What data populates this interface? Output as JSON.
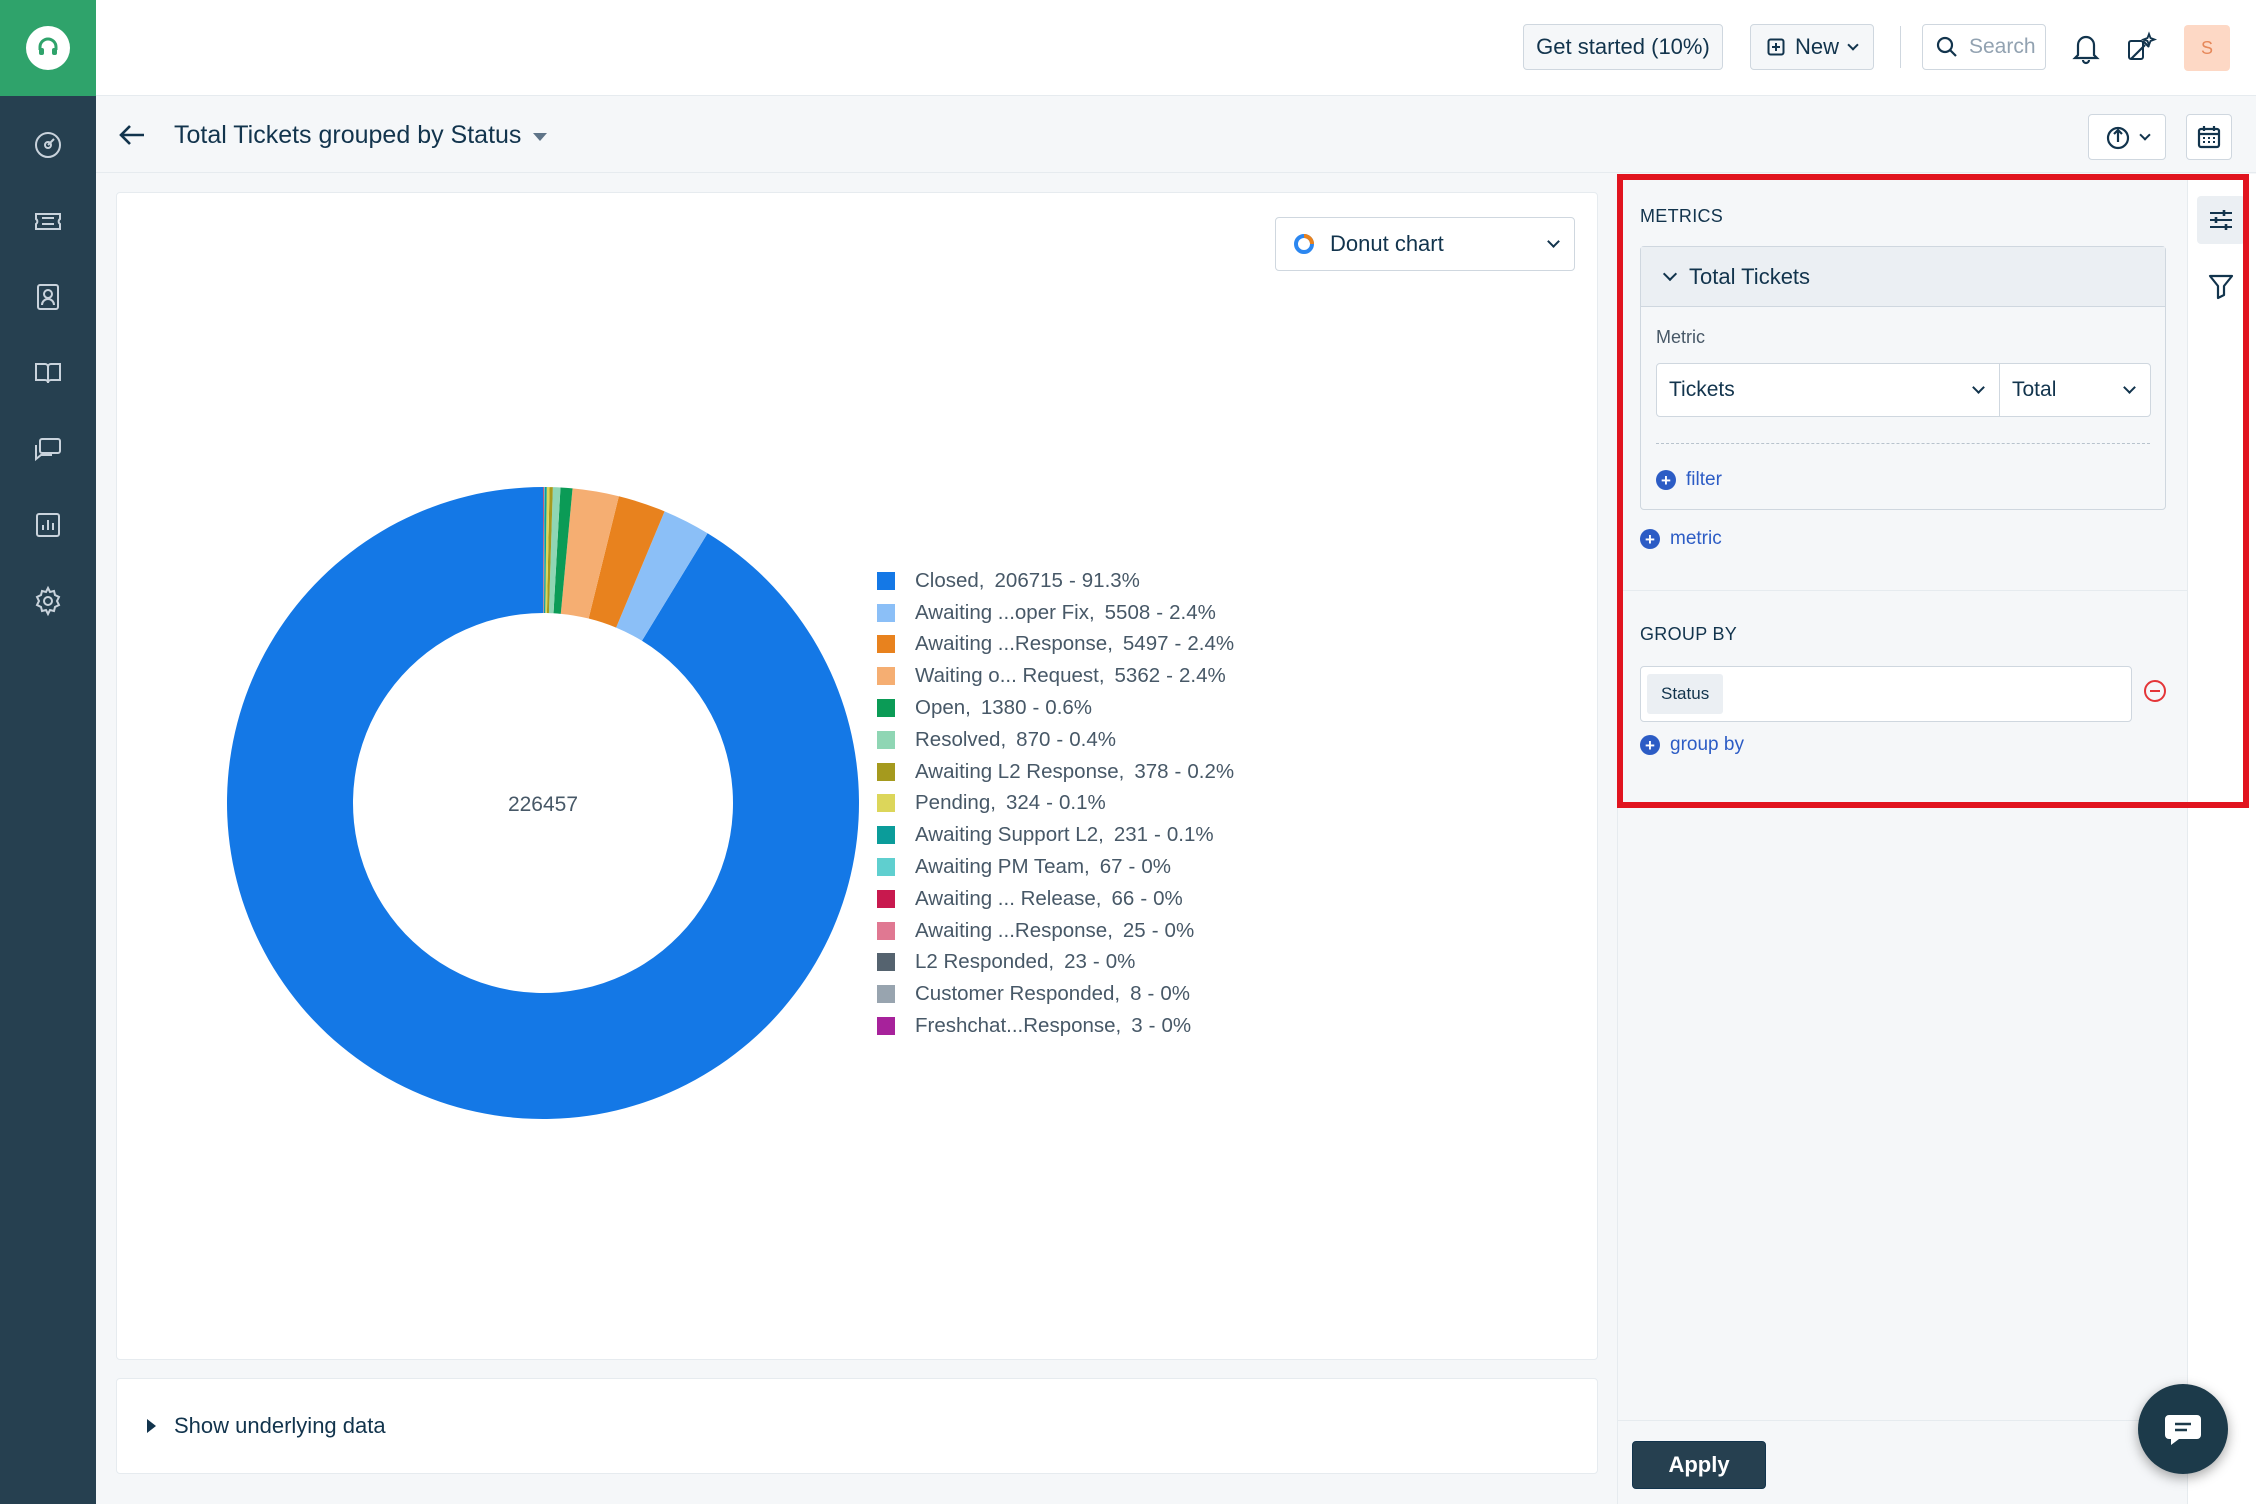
{
  "header": {
    "get_started_label": "Get started (10%)",
    "new_label": "New",
    "search_placeholder": "Search",
    "avatar_initial": "S"
  },
  "subheader": {
    "title": "Total Tickets grouped by Status"
  },
  "chart_selector": {
    "selected": "Donut chart"
  },
  "chart_data": {
    "type": "pie",
    "donut": true,
    "center_label": "226457",
    "slices": [
      {
        "label": "Closed,",
        "value": 206715,
        "percent": "91.3%",
        "color": "#1478e6"
      },
      {
        "label": "Awaiting ...oper Fix,",
        "value": 5508,
        "percent": "2.4%",
        "color": "#8bbff7"
      },
      {
        "label": "Awaiting ...Response,",
        "value": 5497,
        "percent": "2.4%",
        "color": "#e8821e"
      },
      {
        "label": "Waiting o... Request,",
        "value": 5362,
        "percent": "2.4%",
        "color": "#f5ae72"
      },
      {
        "label": "Open,",
        "value": 1380,
        "percent": "0.6%",
        "color": "#0b9b56"
      },
      {
        "label": "Resolved,",
        "value": 870,
        "percent": "0.4%",
        "color": "#8fd6b4"
      },
      {
        "label": "Awaiting L2 Response,",
        "value": 378,
        "percent": "0.2%",
        "color": "#a59a1e"
      },
      {
        "label": "Pending,",
        "value": 324,
        "percent": "0.1%",
        "color": "#dcd65a"
      },
      {
        "label": "Awaiting Support L2,",
        "value": 231,
        "percent": "0.1%",
        "color": "#0b9c9a"
      },
      {
        "label": "Awaiting PM Team,",
        "value": 67,
        "percent": "0%",
        "color": "#5fcfcf"
      },
      {
        "label": "Awaiting ... Release,",
        "value": 66,
        "percent": "0%",
        "color": "#c8194e"
      },
      {
        "label": "Awaiting ...Response,",
        "value": 25,
        "percent": "0%",
        "color": "#e07892"
      },
      {
        "label": "L2 Responded,",
        "value": 23,
        "percent": "0%",
        "color": "#55636f"
      },
      {
        "label": "Customer Responded,",
        "value": 8,
        "percent": "0%",
        "color": "#98a4af"
      },
      {
        "label": "Freshchat...Response,",
        "value": 3,
        "percent": "0%",
        "color": "#a7229b"
      }
    ]
  },
  "underlying": {
    "label": "Show underlying data"
  },
  "panel": {
    "metrics_label": "METRICS",
    "metric_title": "Total Tickets",
    "metric_field_label": "Metric",
    "metric_value": "Tickets",
    "aggregation_value": "Total",
    "filter_link": "filter",
    "metric_link": "metric",
    "group_by_label": "GROUP BY",
    "group_by_chip": "Status",
    "group_by_link": "group by",
    "apply_label": "Apply"
  }
}
